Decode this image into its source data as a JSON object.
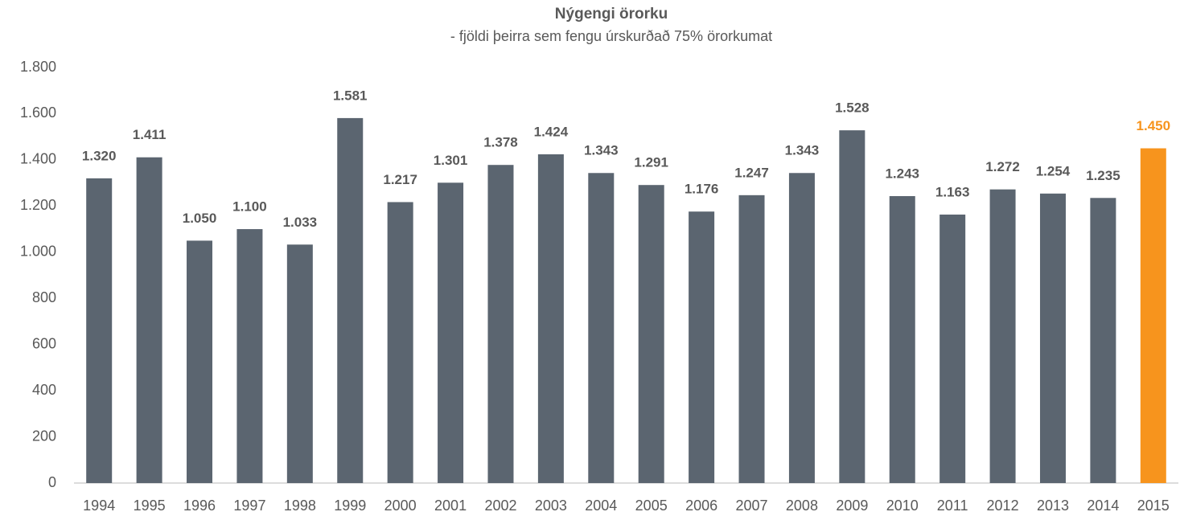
{
  "chart_data": {
    "type": "bar",
    "title": "Nýgengi örorku",
    "subtitle": "- fjöldi þeirra sem fengu úrskurðað 75% örorkumat",
    "categories": [
      "1994",
      "1995",
      "1996",
      "1997",
      "1998",
      "1999",
      "2000",
      "2001",
      "2002",
      "2003",
      "2004",
      "2005",
      "2006",
      "2007",
      "2008",
      "2009",
      "2010",
      "2011",
      "2012",
      "2013",
      "2014",
      "2015"
    ],
    "values": [
      1320,
      1411,
      1050,
      1100,
      1033,
      1581,
      1217,
      1301,
      1378,
      1424,
      1343,
      1291,
      1176,
      1247,
      1343,
      1528,
      1243,
      1163,
      1272,
      1254,
      1235,
      1450
    ],
    "value_labels": [
      "1.320",
      "1.411",
      "1.050",
      "1.100",
      "1.033",
      "1.581",
      "1.217",
      "1.301",
      "1.378",
      "1.424",
      "1.343",
      "1.291",
      "1.176",
      "1.247",
      "1.343",
      "1.528",
      "1.243",
      "1.163",
      "1.272",
      "1.254",
      "1.235",
      "1.450"
    ],
    "colors": [
      "#5b6570",
      "#5b6570",
      "#5b6570",
      "#5b6570",
      "#5b6570",
      "#5b6570",
      "#5b6570",
      "#5b6570",
      "#5b6570",
      "#5b6570",
      "#5b6570",
      "#5b6570",
      "#5b6570",
      "#5b6570",
      "#5b6570",
      "#5b6570",
      "#5b6570",
      "#5b6570",
      "#5b6570",
      "#5b6570",
      "#5b6570",
      "#f7941d"
    ],
    "ylim": [
      0,
      1800
    ],
    "yticks": [
      0,
      200,
      400,
      600,
      800,
      {
        "value": 1000,
        "label": "1.000"
      },
      {
        "value": 1200,
        "label": "1.200"
      },
      {
        "value": 1400,
        "label": "1.400"
      },
      {
        "value": 1600,
        "label": "1.600"
      },
      {
        "value": 1800,
        "label": "1.800"
      }
    ],
    "grid": false
  }
}
